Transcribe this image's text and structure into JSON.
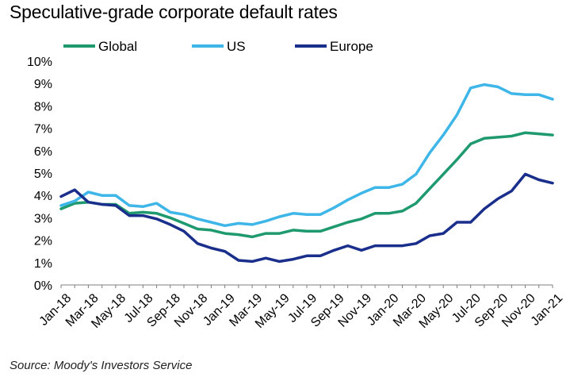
{
  "chart_data": {
    "type": "line",
    "title": "Speculative-grade corporate default rates",
    "source": "Source: Moody's Investors Service",
    "x": [
      "Jan-18",
      "Feb-18",
      "Mar-18",
      "Apr-18",
      "May-18",
      "Jun-18",
      "Jul-18",
      "Aug-18",
      "Sep-18",
      "Oct-18",
      "Nov-18",
      "Dec-18",
      "Jan-19",
      "Feb-19",
      "Mar-19",
      "Apr-19",
      "May-19",
      "Jun-19",
      "Jul-19",
      "Aug-19",
      "Sep-19",
      "Oct-19",
      "Nov-19",
      "Dec-19",
      "Jan-20",
      "Feb-20",
      "Mar-20",
      "Apr-20",
      "May-20",
      "Jun-20",
      "Jul-20",
      "Aug-20",
      "Sep-20",
      "Oct-20",
      "Nov-20",
      "Dec-20",
      "Jan-21"
    ],
    "x_tick_labels": [
      "Jan-18",
      "Mar-18",
      "May-18",
      "Jul-18",
      "Sep-18",
      "Nov-18",
      "Jan-19",
      "Mar-19",
      "May-19",
      "Jul-19",
      "Sep-19",
      "Nov-19",
      "Jan-20",
      "Mar-20",
      "May-20",
      "Jul-20",
      "Sep-20",
      "Nov-20",
      "Jan-21"
    ],
    "y_tick_labels": [
      "0%",
      "1%",
      "2%",
      "3%",
      "4%",
      "5%",
      "6%",
      "7%",
      "8%",
      "9%",
      "10%"
    ],
    "ylim": [
      0,
      10
    ],
    "y_unit": "%",
    "grid": false,
    "legend_position": "top-left",
    "series": [
      {
        "name": "Global",
        "color": "#1f9a6e",
        "values": [
          3.4,
          3.65,
          3.7,
          3.6,
          3.6,
          3.2,
          3.25,
          3.2,
          3.0,
          2.75,
          2.5,
          2.45,
          2.3,
          2.25,
          2.15,
          2.3,
          2.3,
          2.45,
          2.4,
          2.4,
          2.6,
          2.8,
          2.95,
          3.2,
          3.2,
          3.3,
          3.65,
          4.3,
          4.95,
          5.6,
          6.3,
          6.55,
          6.6,
          6.65,
          6.8,
          6.75,
          6.7
        ]
      },
      {
        "name": "US",
        "color": "#3fb6e8",
        "values": [
          3.55,
          3.75,
          4.15,
          4.0,
          4.0,
          3.55,
          3.5,
          3.65,
          3.25,
          3.15,
          2.95,
          2.8,
          2.65,
          2.75,
          2.7,
          2.85,
          3.05,
          3.2,
          3.15,
          3.15,
          3.45,
          3.8,
          4.1,
          4.35,
          4.35,
          4.5,
          4.95,
          5.9,
          6.7,
          7.6,
          8.8,
          8.95,
          8.85,
          8.55,
          8.5,
          8.5,
          8.3
        ]
      },
      {
        "name": "Europe",
        "color": "#1a2f8c",
        "values": [
          3.95,
          4.25,
          3.7,
          3.6,
          3.55,
          3.1,
          3.1,
          2.95,
          2.7,
          2.4,
          1.85,
          1.65,
          1.5,
          1.1,
          1.05,
          1.2,
          1.05,
          1.15,
          1.3,
          1.3,
          1.55,
          1.75,
          1.55,
          1.75,
          1.75,
          1.75,
          1.85,
          2.2,
          2.3,
          2.8,
          2.8,
          3.4,
          3.85,
          4.2,
          4.95,
          4.7,
          4.55
        ]
      }
    ]
  }
}
